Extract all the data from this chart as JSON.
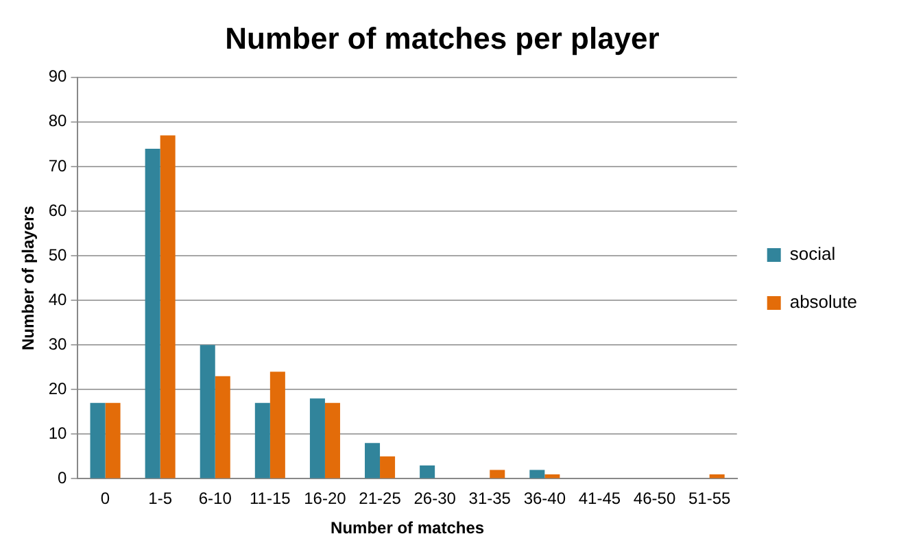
{
  "chart_data": {
    "type": "bar",
    "title": "Number of matches per player",
    "xlabel": "Number of matches",
    "ylabel": "Number of players",
    "categories": [
      "0",
      "1-5",
      "6-10",
      "11-15",
      "16-20",
      "21-25",
      "26-30",
      "31-35",
      "36-40",
      "41-45",
      "46-50",
      "51-55"
    ],
    "series": [
      {
        "name": "social",
        "color": "#31849b",
        "values": [
          17,
          74,
          30,
          17,
          18,
          8,
          3,
          0,
          2,
          0,
          0,
          0
        ]
      },
      {
        "name": "absolute",
        "color": "#e36c09",
        "values": [
          17,
          77,
          23,
          24,
          17,
          5,
          0,
          2,
          1,
          0,
          0,
          1
        ]
      }
    ],
    "ylim": [
      0,
      90
    ],
    "yticks": [
      0,
      10,
      20,
      30,
      40,
      50,
      60,
      70,
      80,
      90
    ],
    "grid": "y",
    "legend": "right"
  }
}
